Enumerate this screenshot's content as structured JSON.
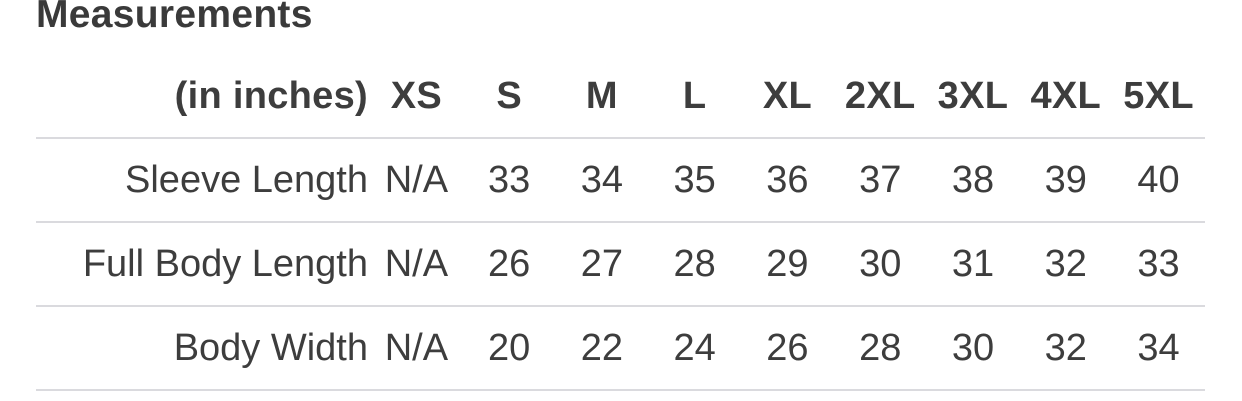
{
  "title": "Measurements",
  "table": {
    "corner_header": "(in inches)",
    "size_headers": [
      "XS",
      "S",
      "M",
      "L",
      "XL",
      "2XL",
      "3XL",
      "4XL",
      "5XL"
    ],
    "rows": [
      {
        "label": "Sleeve Length",
        "values": [
          "N/A",
          "33",
          "34",
          "35",
          "36",
          "37",
          "38",
          "39",
          "40"
        ]
      },
      {
        "label": "Full Body Length",
        "values": [
          "N/A",
          "26",
          "27",
          "28",
          "29",
          "30",
          "31",
          "32",
          "33"
        ]
      },
      {
        "label": "Body Width",
        "values": [
          "N/A",
          "20",
          "22",
          "24",
          "26",
          "28",
          "30",
          "32",
          "34"
        ]
      }
    ]
  },
  "colors": {
    "text": "#3d3d3d",
    "title_text": "#3a3a3a",
    "divider": "#dadade",
    "background": "#ffffff"
  }
}
